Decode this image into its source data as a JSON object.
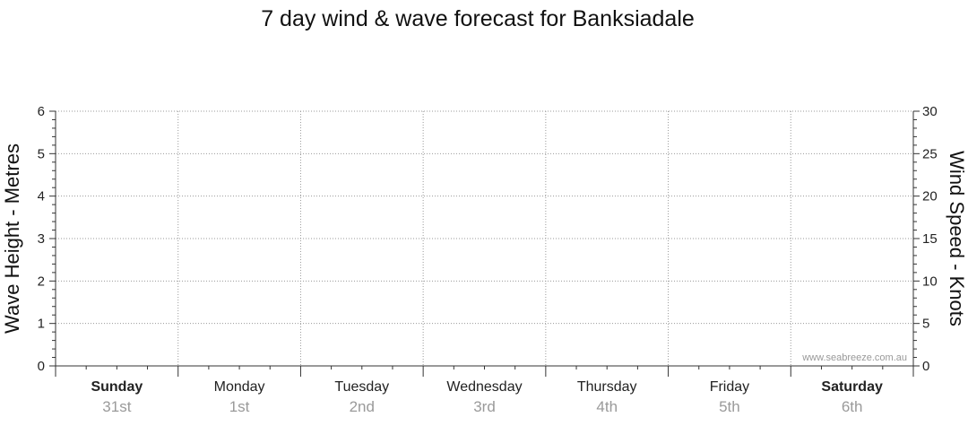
{
  "chart_data": {
    "type": "line",
    "title": "7 day wind & wave forecast for Banksiadale",
    "ylabel_left": "Wave Height - Metres",
    "ylabel_right": "Wind Speed - Knots",
    "left_axis": {
      "ylim": [
        0,
        6
      ],
      "ticks": [
        0,
        1,
        2,
        3,
        4,
        5,
        6
      ]
    },
    "right_axis": {
      "ylim": [
        0,
        30
      ],
      "ticks": [
        0,
        5,
        10,
        15,
        20,
        25,
        30
      ]
    },
    "grid": true,
    "days": [
      {
        "name": "Sunday",
        "date": "31st",
        "bold": true
      },
      {
        "name": "Monday",
        "date": "1st",
        "bold": false
      },
      {
        "name": "Tuesday",
        "date": "2nd",
        "bold": false
      },
      {
        "name": "Wednesday",
        "date": "3rd",
        "bold": false
      },
      {
        "name": "Thursday",
        "date": "4th",
        "bold": false
      },
      {
        "name": "Friday",
        "date": "5th",
        "bold": false
      },
      {
        "name": "Saturday",
        "date": "6th",
        "bold": true
      }
    ],
    "series": [],
    "watermark": "www.seabreeze.com.au"
  }
}
